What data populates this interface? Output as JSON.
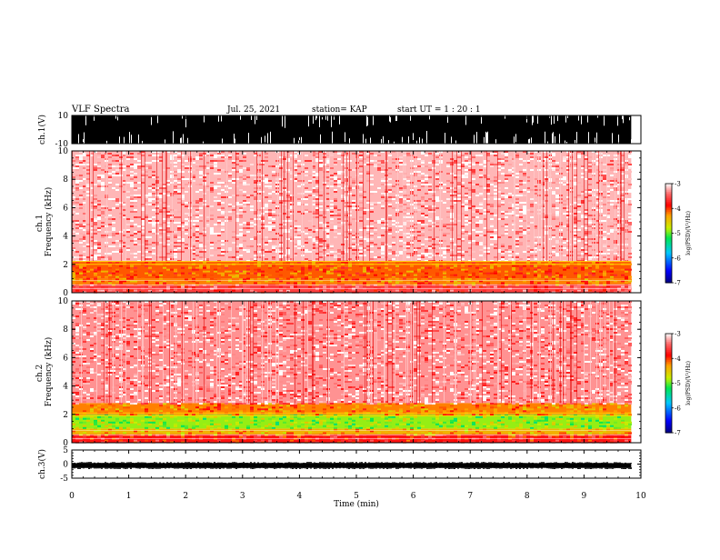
{
  "header": {
    "title": "VLF Spectra",
    "date": "Jul. 25, 2021",
    "station": "station= KAP",
    "start": "start  UT =   1 : 20 : 1"
  },
  "colors": {
    "axes": "#000000",
    "spectrogram_background": "#ff5a5a",
    "waveform": "#000000"
  },
  "chart_data": [
    {
      "type": "area",
      "name": "ch1-waveform",
      "ylabel": "ch.1(V)",
      "ylim": [
        -10,
        10
      ],
      "yticks": [
        -10,
        10
      ],
      "xlim": [
        0,
        10
      ],
      "data_extent_min": 9.83,
      "saturated_range": [
        -10,
        10
      ]
    },
    {
      "type": "heatmap",
      "name": "ch1-spectrogram",
      "ylabel": "ch.1\nFrequency  (kHz)",
      "ylim": [
        0,
        10
      ],
      "yticks": [
        0,
        2,
        4,
        6,
        8,
        10
      ],
      "xlim": [
        0,
        10
      ],
      "data_extent_min": 9.83,
      "colorbar": {
        "label": "log(PSD)(V²/Hz)",
        "range": [
          -7,
          -3
        ],
        "ticks": [
          -7,
          -6,
          -5,
          -4,
          -3
        ]
      },
      "bands": [
        {
          "freq_khz": [
            0.0,
            0.6
          ],
          "level": -3.6
        },
        {
          "freq_khz": [
            0.6,
            1.0
          ],
          "level": -4.2
        },
        {
          "freq_khz": [
            1.0,
            2.2
          ],
          "level": -4.1
        },
        {
          "freq_khz": [
            2.2,
            10.0
          ],
          "level": -3.2
        }
      ],
      "lines_khz": [
        2.0,
        2.2
      ]
    },
    {
      "type": "heatmap",
      "name": "ch2-spectrogram",
      "ylabel": "ch.2\nFrequency  (kHz)",
      "ylim": [
        0,
        10
      ],
      "yticks": [
        0,
        2,
        4,
        6,
        8,
        10
      ],
      "xlim": [
        0,
        10
      ],
      "data_extent_min": 9.83,
      "colorbar": {
        "label": "log(PSD)(V²/Hz)",
        "range": [
          -7,
          -3
        ],
        "ticks": [
          -7,
          -6,
          -5,
          -4,
          -3
        ]
      },
      "bands": [
        {
          "freq_khz": [
            0.0,
            0.6
          ],
          "level": -3.8
        },
        {
          "freq_khz": [
            0.6,
            1.0
          ],
          "level": -4.4
        },
        {
          "freq_khz": [
            1.0,
            2.0
          ],
          "level": -4.9
        },
        {
          "freq_khz": [
            2.0,
            2.8
          ],
          "level": -4.2
        },
        {
          "freq_khz": [
            2.8,
            10.0
          ],
          "level": -3.3
        }
      ],
      "lines_khz": [
        1.9,
        2.1
      ]
    },
    {
      "type": "area",
      "name": "ch3-waveform",
      "ylabel": "ch.3(V)",
      "ylim": [
        -5,
        5
      ],
      "yticks": [
        -5,
        0,
        5
      ],
      "xlim": [
        0,
        10
      ],
      "data_extent_min": 9.83,
      "band_range": [
        -1.2,
        0.2
      ]
    }
  ],
  "xaxis": {
    "label": "Time  (min)",
    "ticks": [
      0,
      1,
      2,
      3,
      4,
      5,
      6,
      7,
      8,
      9,
      10
    ]
  }
}
